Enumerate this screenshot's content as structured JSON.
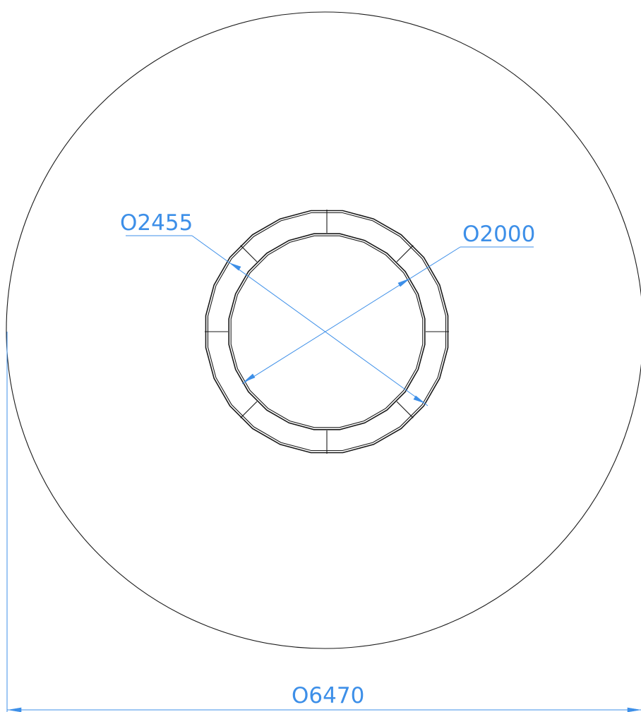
{
  "dimensions": {
    "outer_diameter": "O6470",
    "ring_outer_diameter": "O2455",
    "ring_inner_diameter": "O2000"
  },
  "values": {
    "outer_diameter": 6470,
    "ring_outer_diameter": 2455,
    "ring_inner_diameter": 2000
  },
  "ring": {
    "segments": 8,
    "polygon_sides": 24
  },
  "colors": {
    "dimension": "#3d8fe8",
    "outline": "#1a1a1a",
    "background": "#ffffff"
  }
}
